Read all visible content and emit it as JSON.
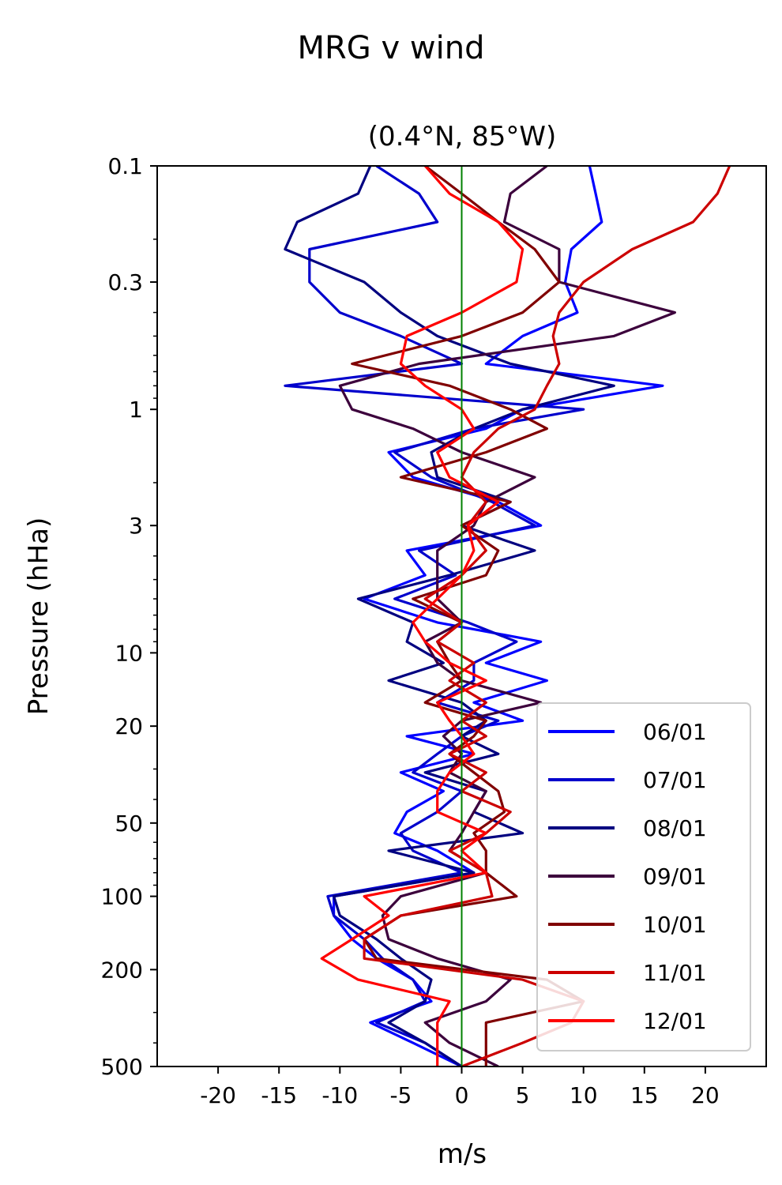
{
  "chart_data": {
    "type": "line",
    "suptitle": "MRG v wind",
    "title": "(0.4°N, 85°W)",
    "xlabel": "m/s",
    "ylabel": "Pressure (hHa)",
    "xlim": [
      -25,
      25
    ],
    "ylim": [
      500,
      0.1
    ],
    "yscale": "log",
    "grid": false,
    "legend_position": "bottom-right",
    "zero_line_color": "#008000",
    "xticks": [
      -20,
      -15,
      -10,
      -5,
      0,
      5,
      10,
      15,
      20
    ],
    "xtick_labels": [
      "-20",
      "-15",
      "-10",
      "-5",
      "0",
      "5",
      "10",
      "15",
      "20"
    ],
    "yticks": [
      0.1,
      0.3,
      1,
      3,
      10,
      20,
      50,
      100,
      200,
      500
    ],
    "ytick_labels": [
      "0.1",
      "0.3",
      "1",
      "3",
      "10",
      "20",
      "50",
      "100",
      "200",
      "500"
    ],
    "pressure": [
      0.1,
      0.13,
      0.17,
      0.22,
      0.3,
      0.4,
      0.5,
      0.65,
      0.8,
      1.0,
      1.2,
      1.5,
      1.9,
      2.4,
      3.0,
      3.8,
      4.8,
      6.0,
      7.5,
      9.0,
      11,
      13,
      16,
      19,
      22,
      26,
      31,
      37,
      45,
      55,
      65,
      80,
      100,
      120,
      150,
      180,
      220,
      270,
      330,
      400,
      500
    ],
    "series": [
      {
        "name": "06/01",
        "color": "#0000ff",
        "values": [
          10.5,
          11,
          11.5,
          9,
          8.5,
          9.5,
          5,
          2,
          16.5,
          5,
          2,
          -6,
          -4,
          3,
          6.5,
          -4.5,
          -3,
          -8,
          -2,
          6.5,
          2,
          7,
          1,
          5,
          -4.5,
          1,
          -5,
          -1.5,
          -4.5,
          -5.5,
          -2,
          1,
          -10.5,
          -10.5,
          -9,
          -7,
          -4,
          -2.5,
          -7.5,
          -4,
          0
        ]
      },
      {
        "name": "07/01",
        "color": "#0000cc",
        "values": [
          -7,
          -3.5,
          -2,
          -12.5,
          -12.5,
          -10,
          -5,
          0,
          -14.5,
          10,
          1,
          -5.5,
          -2.5,
          2.5,
          6,
          -3.5,
          -0.5,
          -5.5,
          0.5,
          4.5,
          1,
          1,
          -2,
          3,
          0,
          -2,
          -4,
          0,
          -2,
          -5,
          -4,
          0,
          -11,
          -10.5,
          -8,
          -6.5,
          -4,
          -3,
          -7,
          -3,
          0
        ]
      },
      {
        "name": "08/01",
        "color": "#000080",
        "values": [
          -7.5,
          -8.5,
          -13.5,
          -14.5,
          -8,
          -5,
          -2,
          4,
          12.5,
          5,
          1,
          -2.5,
          -2,
          4,
          0,
          6,
          -1,
          -8.5,
          -4,
          -4.5,
          -1.5,
          -6,
          0,
          2,
          0,
          3,
          -3,
          2,
          1,
          5,
          -6,
          1,
          -10.5,
          -10,
          -7,
          -5,
          -2.5,
          -3,
          -6,
          -3,
          0
        ]
      },
      {
        "name": "09/01",
        "color": "#3c003c",
        "values": [
          7,
          4,
          3.5,
          8,
          8,
          17.5,
          12.5,
          -3.5,
          -10,
          -9,
          -4,
          0,
          6,
          2,
          1,
          -2,
          -2,
          -2,
          0,
          -3,
          -2,
          0,
          6.5,
          0,
          -1.5,
          0,
          -1,
          2,
          1,
          0,
          -1,
          2,
          -5,
          -6.5,
          -6,
          -2,
          4,
          2,
          -3,
          -1,
          3
        ]
      },
      {
        "name": "10/01",
        "color": "#800000",
        "values": [
          -3,
          0,
          3,
          6,
          8,
          5,
          0,
          -9,
          -1,
          4,
          7,
          2,
          -5,
          4,
          0,
          3,
          2,
          -4,
          0,
          -2,
          -1,
          0,
          -3,
          2,
          1,
          -1,
          1,
          3,
          3.5,
          1,
          2,
          2,
          4.5,
          -5,
          -8,
          -7,
          7,
          10,
          2,
          2,
          2
        ]
      },
      {
        "name": "11/01",
        "color": "#cc0000",
        "values": [
          22,
          21,
          19,
          14,
          10,
          8,
          7.5,
          8,
          7,
          6,
          3,
          1,
          0,
          2,
          0.5,
          2,
          0,
          -3,
          0,
          -2,
          1,
          -1,
          2,
          0,
          2,
          -1,
          2,
          0,
          4,
          2,
          -1,
          2,
          2.5,
          -5,
          -8,
          -8,
          5,
          10,
          9,
          5,
          0
        ]
      },
      {
        "name": "12/01",
        "color": "#ff0000",
        "values": [
          -3,
          -1,
          3,
          5,
          4.5,
          0,
          -4.5,
          -5,
          -3,
          0,
          1,
          -2,
          -1,
          3,
          0.5,
          1,
          0,
          -2,
          -4,
          -3,
          -1,
          2,
          -2,
          -1,
          0,
          1,
          -1,
          -2,
          -2,
          2,
          0,
          2,
          -8,
          -6,
          -9,
          -11.5,
          -8.5,
          -1,
          -2,
          -2,
          -2
        ]
      }
    ]
  }
}
